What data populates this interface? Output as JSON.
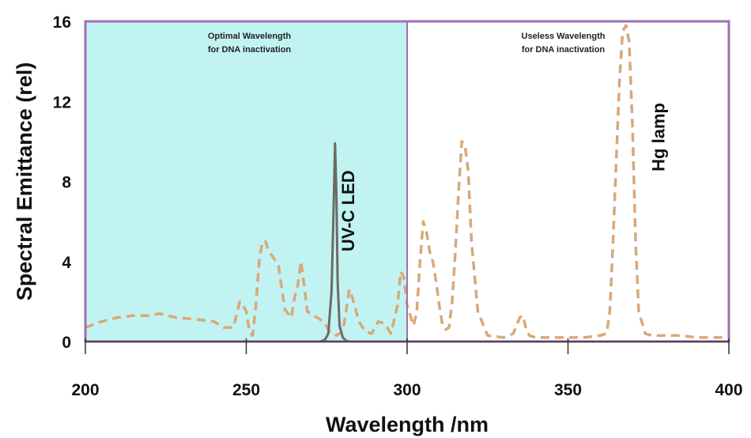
{
  "chart_data": {
    "type": "line",
    "xlabel": "Wavelength /nm",
    "ylabel": "Spectral Emittance (rel)",
    "xlim": [
      200,
      400
    ],
    "ylim": [
      0,
      16
    ],
    "x_ticks": [
      "200",
      "250",
      "300",
      "350",
      "400"
    ],
    "y_ticks": [
      "0",
      "4",
      "8",
      "12",
      "16"
    ],
    "regions": [
      {
        "label_line1": "Optimal Wavelength",
        "label_line2": "for DNA inactivation",
        "x_range": [
          200,
          300
        ],
        "color": "#c2f3f3"
      },
      {
        "label_line1": "Useless Wavelength",
        "label_line2": "for DNA inactivation",
        "x_range": [
          300,
          400
        ],
        "color": "#ffffff"
      }
    ],
    "series": [
      {
        "name": "UV-C LED",
        "style": "solid",
        "color": "#6e6a66",
        "x": [
          273,
          274.5,
          275.5,
          276.5,
          277.2,
          277.6,
          278.0,
          278.4,
          279.0,
          280.0,
          281.0,
          282.0
        ],
        "y": [
          0.0,
          0.1,
          0.4,
          2.5,
          7.0,
          9.9,
          7.5,
          3.0,
          0.8,
          0.2,
          0.05,
          0.0
        ]
      },
      {
        "name": "Hg lamp",
        "style": "dashed",
        "color": "#d9a878",
        "x": [
          200,
          205,
          210,
          215,
          220,
          223,
          228,
          235,
          240,
          243,
          246,
          248,
          249,
          250,
          251,
          252,
          253,
          254,
          255,
          256,
          257,
          258,
          260,
          261,
          262,
          264,
          265,
          266,
          267,
          268,
          269,
          270,
          272,
          274,
          276,
          278,
          280,
          281,
          282,
          283,
          284,
          285,
          287,
          289,
          291,
          293,
          295,
          297,
          298,
          299,
          300,
          302,
          303,
          304,
          305,
          306,
          307,
          308,
          309,
          310,
          311,
          312,
          313,
          314,
          315,
          316,
          317,
          318,
          319,
          320,
          322,
          325,
          330,
          333,
          334,
          335,
          336,
          337,
          338,
          340,
          345,
          350,
          355,
          360,
          362,
          363,
          364,
          365,
          366,
          367,
          368,
          369,
          370,
          371,
          372,
          374,
          376,
          380,
          385,
          390,
          395,
          400
        ],
        "y": [
          0.7,
          1.0,
          1.2,
          1.3,
          1.3,
          1.4,
          1.2,
          1.1,
          1.0,
          0.7,
          0.7,
          2.0,
          1.8,
          1.5,
          0.5,
          0.3,
          1.8,
          4.0,
          5.0,
          5.0,
          4.5,
          4.3,
          3.8,
          2.7,
          1.6,
          1.2,
          2.2,
          2.8,
          4.0,
          2.8,
          1.5,
          1.4,
          1.2,
          1.0,
          0.5,
          0.3,
          0.5,
          1.5,
          2.6,
          2.2,
          1.6,
          1.0,
          0.5,
          0.4,
          1.0,
          0.9,
          0.4,
          1.8,
          3.5,
          3.2,
          1.8,
          0.8,
          1.5,
          4.0,
          6.0,
          5.5,
          4.5,
          4.0,
          3.0,
          1.8,
          0.8,
          0.6,
          0.7,
          2.0,
          4.5,
          7.5,
          10.0,
          9.8,
          8.5,
          5.0,
          1.5,
          0.3,
          0.2,
          0.4,
          0.8,
          1.2,
          1.3,
          0.6,
          0.3,
          0.2,
          0.2,
          0.2,
          0.2,
          0.3,
          0.4,
          1.5,
          5.0,
          9.0,
          13.0,
          15.5,
          15.8,
          15.0,
          11.0,
          5.0,
          1.5,
          0.4,
          0.3,
          0.3,
          0.3,
          0.2,
          0.2,
          0.2
        ]
      }
    ],
    "grid": false,
    "legend": "none"
  },
  "colors": {
    "frame": "#a070b0",
    "axis": "#333333",
    "optimal_fill": "#c2f3f3"
  }
}
